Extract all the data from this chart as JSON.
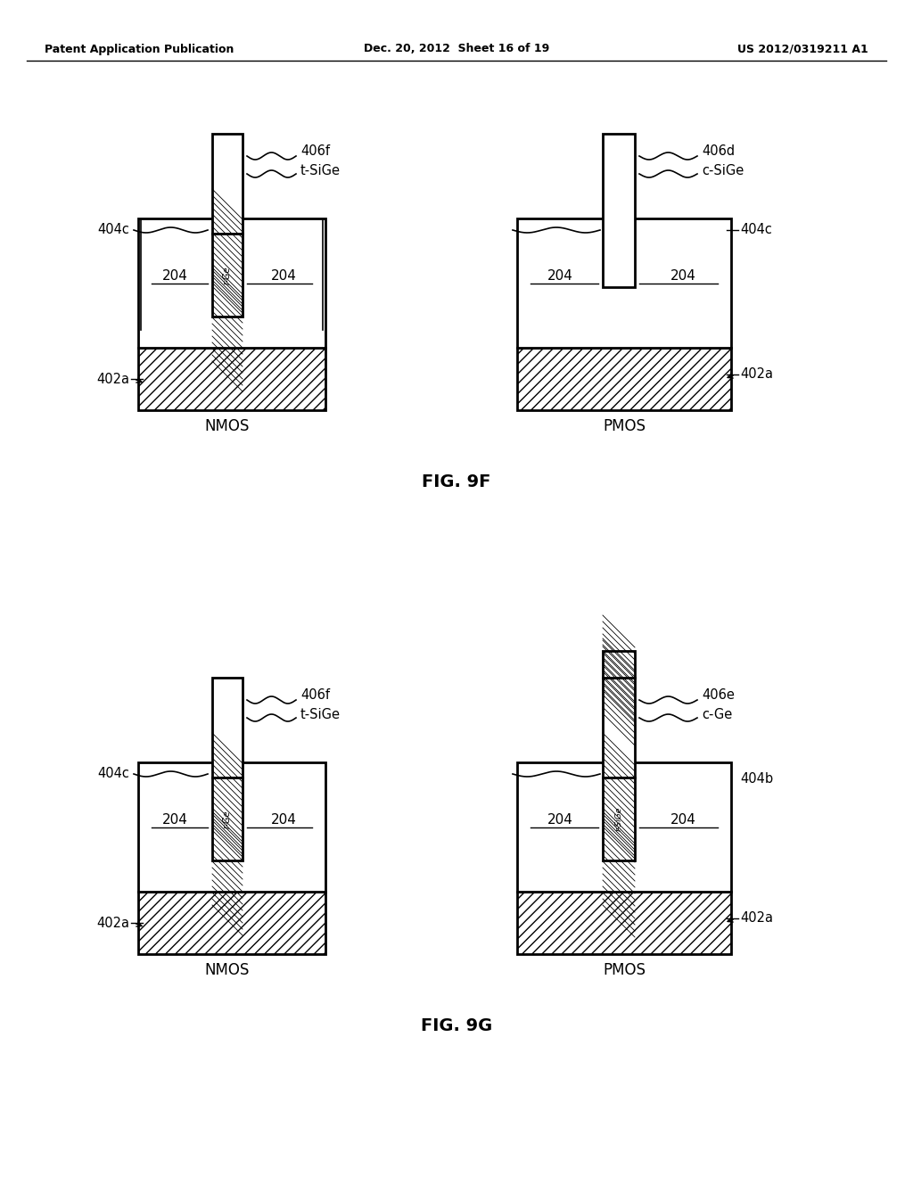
{
  "header_left": "Patent Application Publication",
  "header_mid": "Dec. 20, 2012  Sheet 16 of 19",
  "header_right": "US 2012/0319211 A1",
  "fig9f_title": "FIG. 9F",
  "fig9g_title": "FIG. 9G",
  "nmos_label": "NMOS",
  "pmos_label": "PMOS",
  "bg_color": "#ffffff",
  "line_color": "#000000",
  "hatch_color": "#000000",
  "fill_light": "#ffffff",
  "fill_gray": "#d0d0d0"
}
